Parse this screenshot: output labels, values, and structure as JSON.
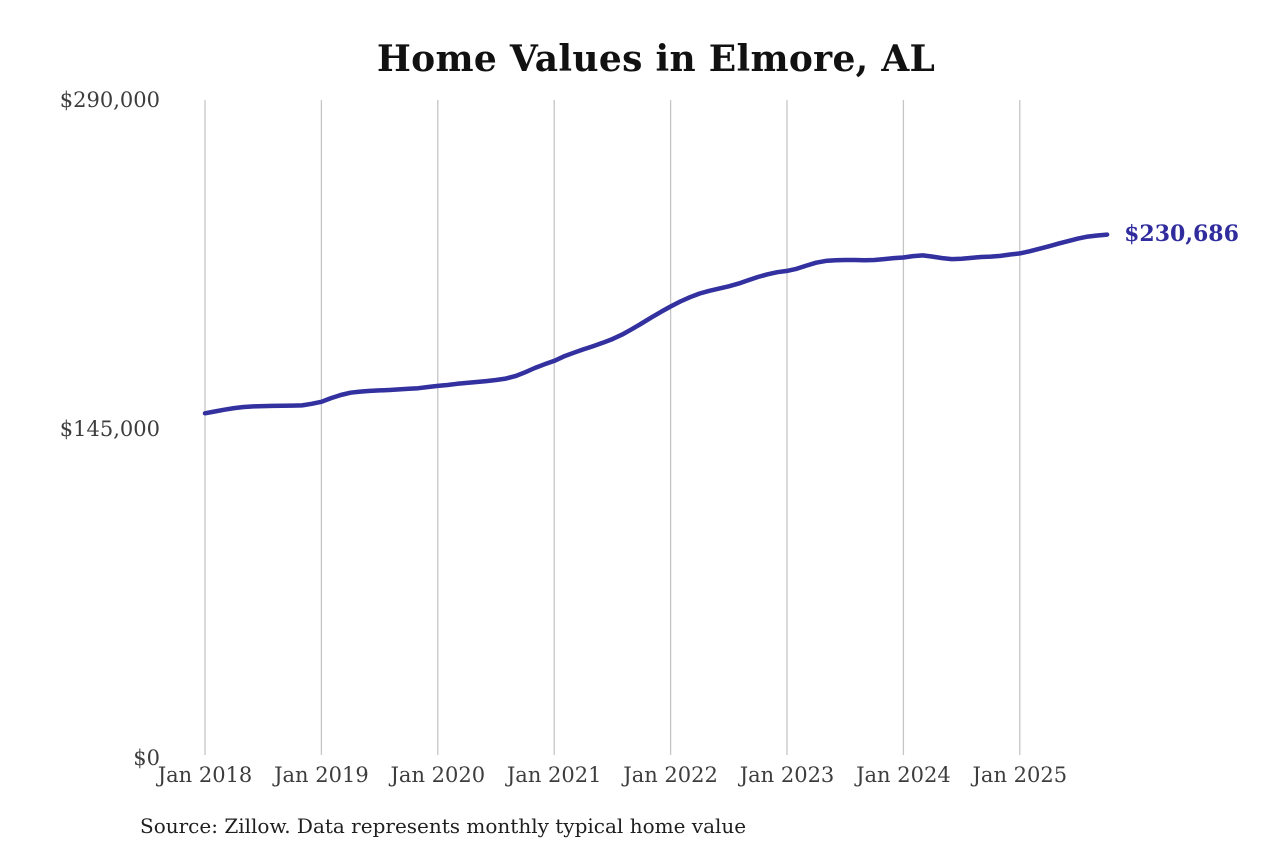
{
  "title": "Home Values in Elmore, AL",
  "source_note": "Source: Zillow. Data represents monthly typical home value",
  "colors": {
    "line": "#33309f",
    "grid": "#c6c6c6",
    "title_text": "#111111",
    "axis_text": "#3d3d3d",
    "source_text": "#1f1f1f",
    "background": "#ffffff"
  },
  "chart_data": {
    "type": "line",
    "title": "Home Values in Elmore, AL",
    "xlabel": "",
    "ylabel": "",
    "x_interval": "monthly",
    "x_start_month": "2018-01",
    "x_end_month": "2025-10",
    "x_tick_labels": [
      "Jan 2018",
      "Jan 2019",
      "Jan 2020",
      "Jan 2021",
      "Jan 2022",
      "Jan 2023",
      "Jan 2024",
      "Jan 2025"
    ],
    "y_ticks": [
      {
        "label": "$0",
        "value": 0
      },
      {
        "label": "$145,000",
        "value": 145000
      },
      {
        "label": "$290,000",
        "value": 290000
      }
    ],
    "ylim": [
      0,
      290000
    ],
    "grid": "vertical-only",
    "legend": "none",
    "end_value": 230686,
    "end_value_label": "$230,686",
    "series": [
      {
        "name": "Typical home value",
        "color": "#33309f",
        "values": [
          151900,
          152700,
          153500,
          154200,
          154700,
          154950,
          155100,
          155200,
          155250,
          155300,
          155400,
          156100,
          157000,
          158600,
          160000,
          161000,
          161500,
          161800,
          162000,
          162200,
          162450,
          162700,
          163000,
          163500,
          164000,
          164400,
          164900,
          165300,
          165700,
          166100,
          166600,
          167200,
          168300,
          170000,
          171900,
          173500,
          175000,
          177000,
          178600,
          180100,
          181500,
          183000,
          184600,
          186600,
          189000,
          191500,
          194100,
          196600,
          199000,
          201200,
          203100,
          204700,
          205900,
          206900,
          207900,
          209100,
          210600,
          212000,
          213200,
          214100,
          214700,
          215600,
          217000,
          218300,
          219100,
          219400,
          219500,
          219500,
          219400,
          219500,
          219900,
          220300,
          220600,
          221200,
          221500,
          221000,
          220300,
          219900,
          220000,
          220400,
          220800,
          221000,
          221300,
          221900,
          222400,
          223300,
          224400,
          225500,
          226700,
          227800,
          228900,
          229800,
          230300,
          230686
        ]
      }
    ]
  }
}
